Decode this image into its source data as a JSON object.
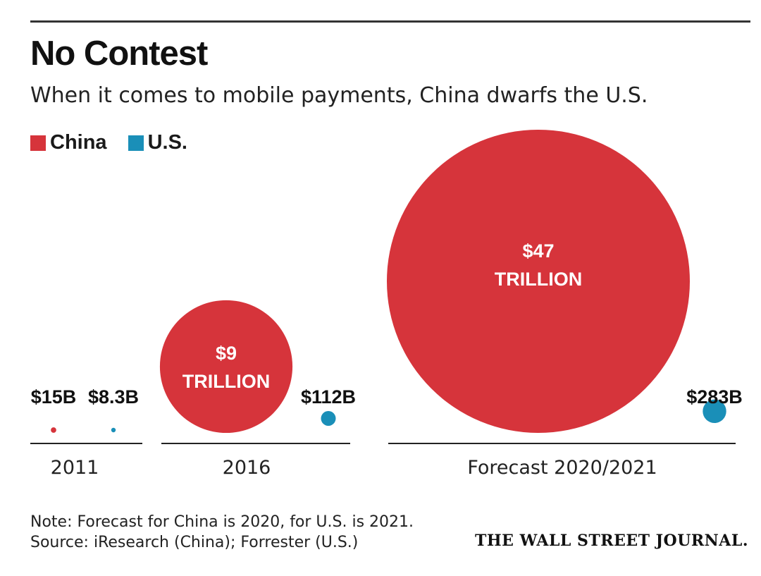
{
  "header": {
    "title": "No Contest",
    "subtitle": "When it comes to mobile payments, China dwarfs the U.S."
  },
  "legend": [
    {
      "label": "China",
      "color": "#d6343b"
    },
    {
      "label": "U.S.",
      "color": "#1a8fb8"
    }
  ],
  "chart_data": {
    "type": "bubble",
    "units": "mobile payments (USD)",
    "groups": [
      {
        "label": "2011",
        "china": {
          "value_trillion": 0.015,
          "label": "$15B"
        },
        "us": {
          "value_trillion": 0.0083,
          "label": "$8.3B"
        }
      },
      {
        "label": "2016",
        "china": {
          "value_trillion": 9,
          "label_line1": "$9",
          "label_line2": "TRILLION"
        },
        "us": {
          "value_trillion": 0.112,
          "label": "$112B"
        }
      },
      {
        "label": "Forecast 2020/2021",
        "china": {
          "value_trillion": 47,
          "label_line1": "$47",
          "label_line2": "TRILLION"
        },
        "us": {
          "value_trillion": 0.283,
          "label": "$283B"
        }
      }
    ]
  },
  "footer": {
    "note": "Note: Forecast for China is 2020, for U.S. is 2021.",
    "source": "Source: iResearch (China); Forrester (U.S.)",
    "brand": "THE WALL STREET JOURNAL."
  }
}
